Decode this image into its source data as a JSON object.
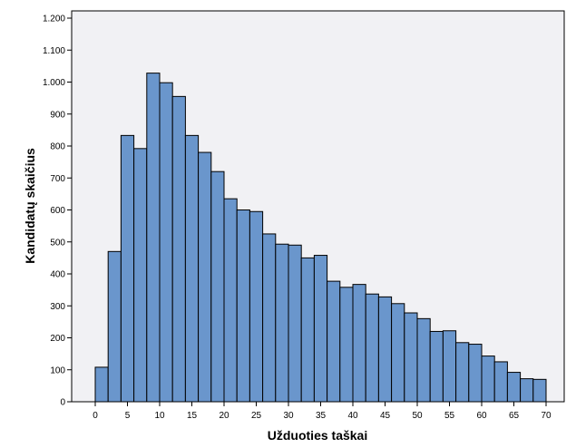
{
  "chart_data": {
    "type": "bar",
    "subtype": "histogram",
    "xlabel": "Užduoties taškai",
    "ylabel": "Kandidatų skaičius",
    "xlim": [
      -2,
      72
    ],
    "ylim": [
      0,
      1200
    ],
    "x_ticks": [
      0,
      5,
      10,
      15,
      20,
      25,
      30,
      35,
      40,
      45,
      50,
      55,
      60,
      65,
      70
    ],
    "x_tick_labels": [
      "0",
      "5",
      "10",
      "15",
      "20",
      "25",
      "30",
      "35",
      "40",
      "45",
      "50",
      "55",
      "60",
      "65",
      "70"
    ],
    "y_ticks": [
      0,
      100,
      200,
      300,
      400,
      500,
      600,
      700,
      800,
      900,
      1000,
      1100,
      1200
    ],
    "y_tick_labels": [
      "0",
      "100",
      "200",
      "300",
      "400",
      "500",
      "600",
      "700",
      "800",
      "900",
      "1.000",
      "1.100",
      "1.200"
    ],
    "bin_width": 2,
    "bin_start": 0,
    "values": [
      108,
      470,
      833,
      792,
      1028,
      998,
      955,
      833,
      780,
      720,
      635,
      600,
      595,
      525,
      493,
      490,
      450,
      458,
      377,
      358,
      367,
      337,
      328,
      307,
      278,
      260,
      220,
      222,
      185,
      180,
      143,
      125,
      92,
      72,
      70
    ],
    "bar_color": "#6a96cc",
    "bar_edge_color": "#000000",
    "plot_background": "#f1f1f4",
    "grid": false,
    "legend": false
  }
}
